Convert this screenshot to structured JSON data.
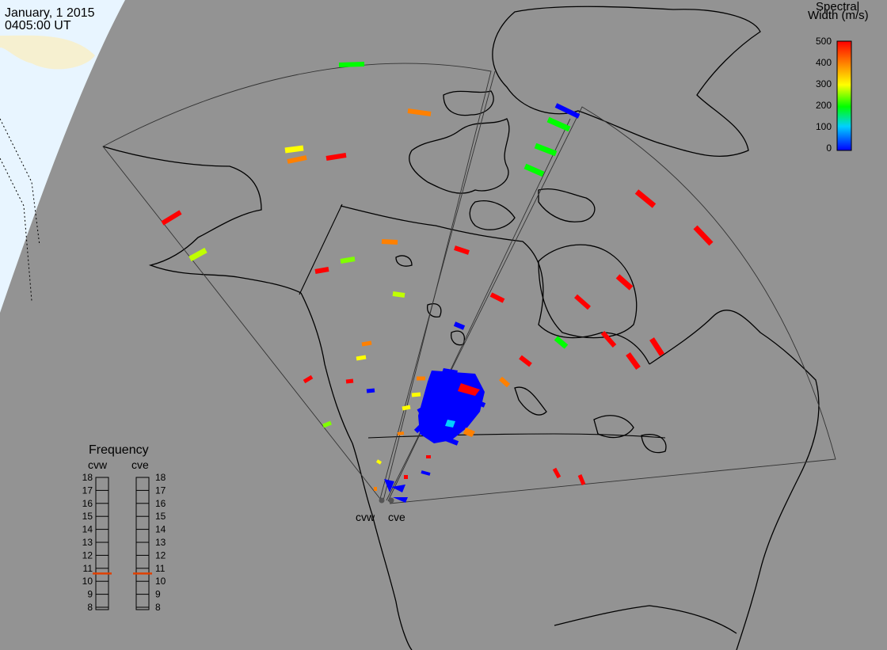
{
  "header": {
    "date": "January, 1 2015",
    "time": "0405:00 UT"
  },
  "colorbar": {
    "title_line1": "Spectral",
    "title_line2": "Width (m/s)",
    "ticks": [
      "500",
      "400",
      "300",
      "200",
      "100",
      "0"
    ],
    "range": [
      0,
      500
    ],
    "colors": [
      "#0000ff",
      "#00d0ff",
      "#00ff00",
      "#ffff00",
      "#ff8000",
      "#ff0000"
    ]
  },
  "frequency_panel": {
    "title": "Frequency",
    "radars": [
      "cvw",
      "cve"
    ],
    "scale": [
      "18",
      "17",
      "16",
      "15",
      "14",
      "13",
      "12",
      "11",
      "10",
      "9",
      "8"
    ],
    "cvw_value_mhz": 10.6,
    "cve_value_mhz": 10.6
  },
  "stations": [
    {
      "name": "cvw"
    },
    {
      "name": "cve"
    }
  ],
  "map_colors": {
    "ocean_gray": "#939393",
    "daylight_region": "#e8f5ff",
    "coastline": "#000000"
  }
}
